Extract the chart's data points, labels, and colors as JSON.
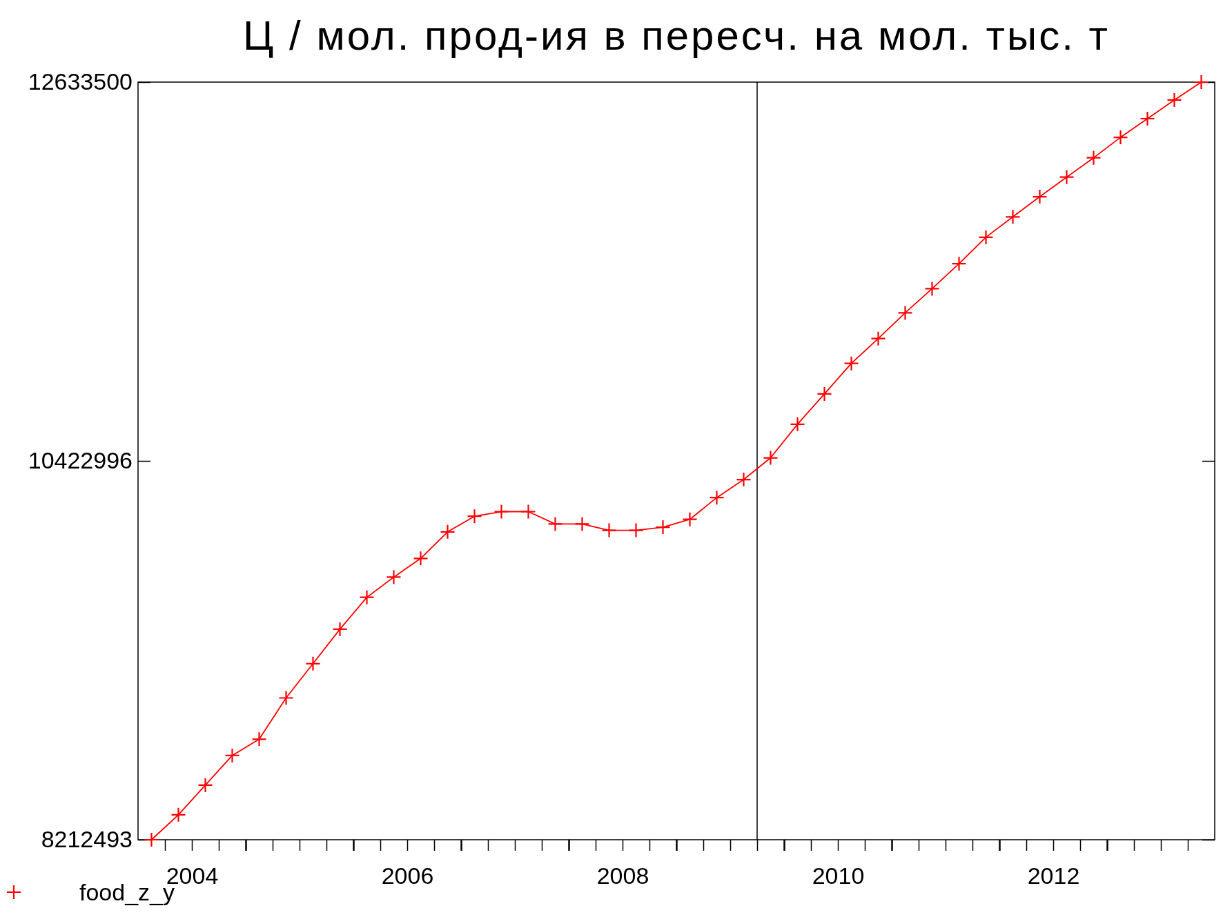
{
  "chart_data": {
    "type": "line",
    "title": "Ц /  мол. прод-ия  в  пересч. на  мол. тыс. т",
    "x": [
      2004.125,
      2004.375,
      2004.625,
      2004.875,
      2005.125,
      2005.375,
      2005.625,
      2005.875,
      2006.125,
      2006.375,
      2006.625,
      2006.875,
      2007.125,
      2007.375,
      2007.625,
      2007.875,
      2008.125,
      2008.375,
      2008.625,
      2008.875,
      2009.125,
      2009.375,
      2009.625,
      2009.875,
      2010.125,
      2010.375,
      2010.625,
      2010.875,
      2011.125,
      2011.375,
      2011.625,
      2011.875,
      2012.125,
      2012.375,
      2012.625,
      2012.875,
      2013.125,
      2013.375,
      2013.625,
      2013.875
    ],
    "series": [
      {
        "name": "food_z_y",
        "color": "#ff0000",
        "values": [
          8212493,
          8358000,
          8531000,
          8704000,
          8799000,
          9040000,
          9240000,
          9441000,
          9627000,
          9745000,
          9854000,
          10009000,
          10100000,
          10127000,
          10127000,
          10055000,
          10055000,
          10018000,
          10018000,
          10036000,
          10082000,
          10209000,
          10314000,
          10441000,
          10637000,
          10814000,
          10992000,
          11137000,
          11287000,
          11428000,
          11574000,
          11728000,
          11847000,
          11965000,
          12079000,
          12192000,
          12311000,
          12420000,
          12529000,
          12633500
        ]
      }
    ],
    "xlim": [
      2004,
      2014
    ],
    "xticks": [
      {
        "value": 2004.25,
        "label": null
      },
      {
        "value": 2004.5,
        "label": "2004"
      },
      {
        "value": 2004.75,
        "label": null
      },
      {
        "value": 2005,
        "label": null
      },
      {
        "value": 2005.25,
        "label": null
      },
      {
        "value": 2005.5,
        "label": null
      },
      {
        "value": 2005.75,
        "label": null
      },
      {
        "value": 2006,
        "label": null
      },
      {
        "value": 2006.25,
        "label": null
      },
      {
        "value": 2006.5,
        "label": "2006"
      },
      {
        "value": 2006.75,
        "label": null
      },
      {
        "value": 2007,
        "label": null
      },
      {
        "value": 2007.25,
        "label": null
      },
      {
        "value": 2007.5,
        "label": null
      },
      {
        "value": 2007.75,
        "label": null
      },
      {
        "value": 2008,
        "label": null
      },
      {
        "value": 2008.25,
        "label": null
      },
      {
        "value": 2008.5,
        "label": "2008"
      },
      {
        "value": 2008.75,
        "label": null
      },
      {
        "value": 2009,
        "label": null
      },
      {
        "value": 2009.25,
        "label": null
      },
      {
        "value": 2009.5,
        "label": null
      },
      {
        "value": 2009.75,
        "label": null
      },
      {
        "value": 2010,
        "label": null
      },
      {
        "value": 2010.25,
        "label": null
      },
      {
        "value": 2010.5,
        "label": "2010"
      },
      {
        "value": 2010.75,
        "label": null
      },
      {
        "value": 2011,
        "label": null
      },
      {
        "value": 2011.25,
        "label": null
      },
      {
        "value": 2011.5,
        "label": null
      },
      {
        "value": 2011.75,
        "label": null
      },
      {
        "value": 2012,
        "label": null
      },
      {
        "value": 2012.25,
        "label": null
      },
      {
        "value": 2012.5,
        "label": "2012"
      },
      {
        "value": 2012.75,
        "label": null
      },
      {
        "value": 2013,
        "label": null
      },
      {
        "value": 2013.25,
        "label": null
      },
      {
        "value": 2013.5,
        "label": null
      },
      {
        "value": 2013.75,
        "label": null
      }
    ],
    "ylim": [
      8212493,
      12633500
    ],
    "yticks": [
      8212493,
      10422996,
      12633500
    ],
    "ref_lines": [
      {
        "axis": "x",
        "value": 2009.75,
        "color": "#000000"
      }
    ],
    "marker": "cross",
    "line_style": "solid",
    "grid": false,
    "legend": "bottom left"
  }
}
